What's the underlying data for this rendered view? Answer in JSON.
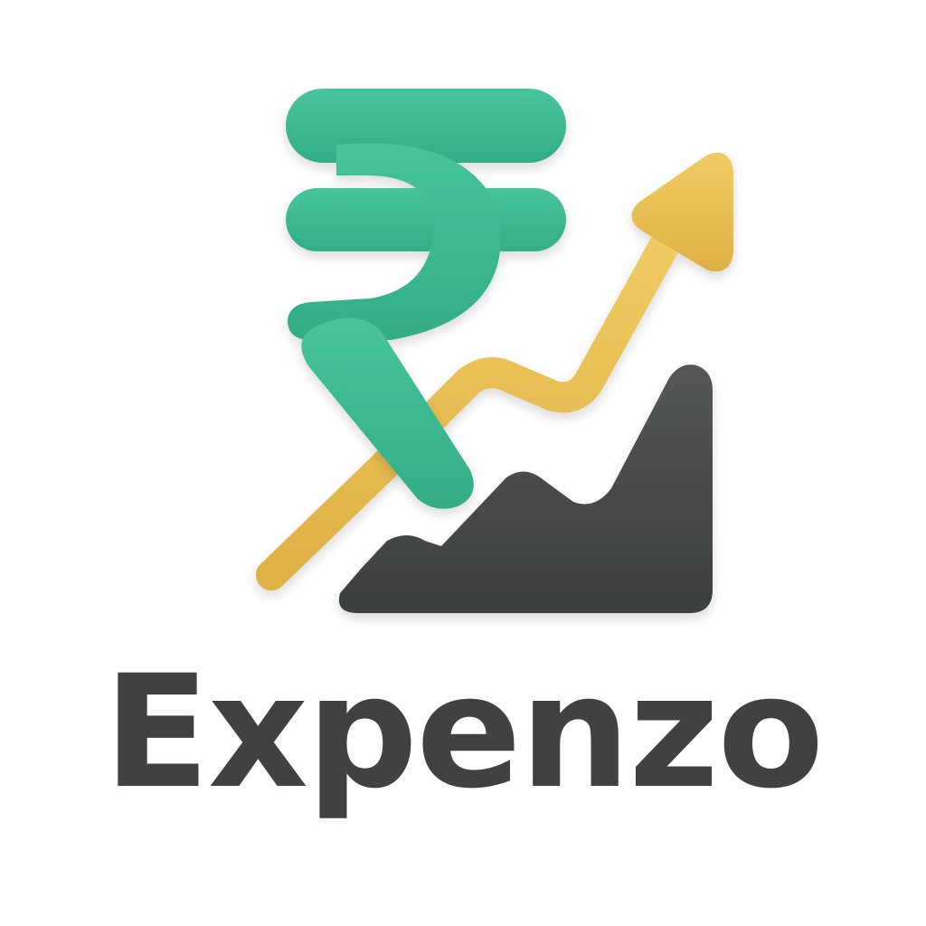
{
  "brand": {
    "name": "Expenzo"
  },
  "logo": {
    "icons": [
      "rupee-icon",
      "trend-arrow-icon",
      "area-chart-icon"
    ]
  },
  "colors": {
    "background": "#ffffff",
    "rupee_green": "#3dbb94",
    "arrow_gold": "#e8bf54",
    "chart_dark": "#464948",
    "text_dark": "#3f4241"
  }
}
